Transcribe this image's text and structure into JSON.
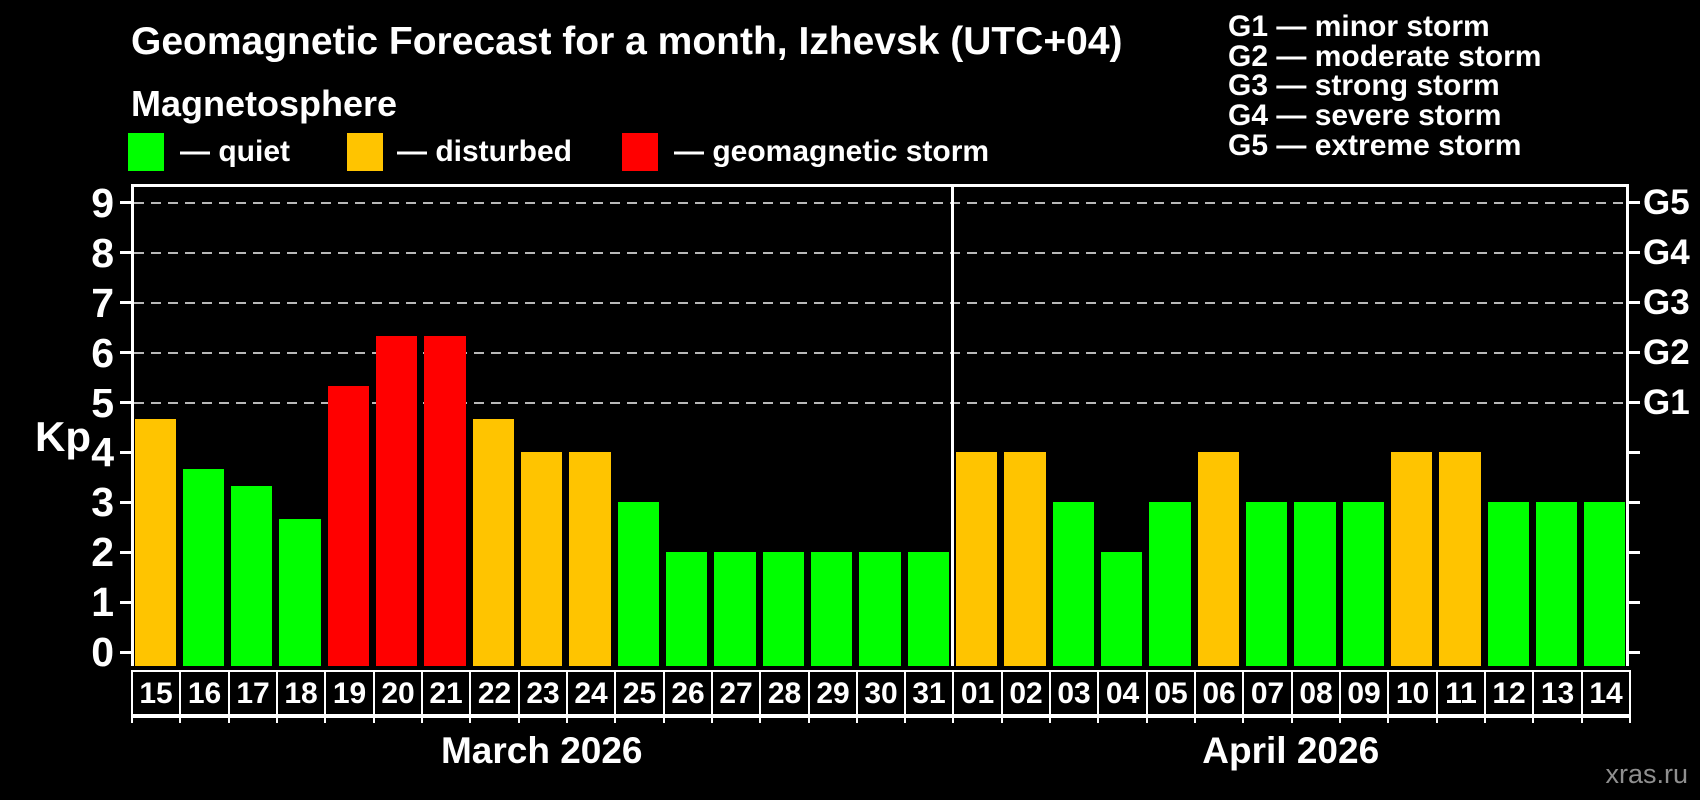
{
  "title": "Geomagnetic Forecast for a month, Izhevsk (UTC+04)",
  "subtitle": "Magnetosphere",
  "legend": [
    {
      "label": "— quiet",
      "color": "#00ff00"
    },
    {
      "label": "— disturbed",
      "color": "#ffc400"
    },
    {
      "label": "— geomagnetic storm",
      "color": "#ff0000"
    }
  ],
  "storm_scale": [
    "G1 — minor storm",
    "G2 — moderate storm",
    "G3 — strong storm",
    "G4 — severe storm",
    "G5 — extreme storm"
  ],
  "watermark": "xras.ru",
  "chart_data": {
    "type": "bar",
    "ylabel": "Kp",
    "ylim": [
      0,
      9.4
    ],
    "y_ticks": [
      0,
      1,
      2,
      3,
      4,
      5,
      6,
      7,
      8,
      9
    ],
    "gridlines_at": [
      5,
      6,
      7,
      8,
      9
    ],
    "grid_color": "#b8b8b8",
    "right_axis": [
      {
        "label": "G5",
        "kp": 9
      },
      {
        "label": "G4",
        "kp": 8
      },
      {
        "label": "G3",
        "kp": 7
      },
      {
        "label": "G2",
        "kp": 6
      },
      {
        "label": "G1",
        "kp": 5
      }
    ],
    "colors": {
      "quiet": "#00ff00",
      "disturbed": "#ffc400",
      "storm": "#ff0000"
    },
    "months": [
      {
        "label": "March 2026",
        "days": [
          {
            "day": "15",
            "kp": 4.67,
            "level": "disturbed"
          },
          {
            "day": "16",
            "kp": 3.67,
            "level": "quiet"
          },
          {
            "day": "17",
            "kp": 3.33,
            "level": "quiet"
          },
          {
            "day": "18",
            "kp": 2.67,
            "level": "quiet"
          },
          {
            "day": "19",
            "kp": 5.33,
            "level": "storm"
          },
          {
            "day": "20",
            "kp": 6.33,
            "level": "storm"
          },
          {
            "day": "21",
            "kp": 6.33,
            "level": "storm"
          },
          {
            "day": "22",
            "kp": 4.67,
            "level": "disturbed"
          },
          {
            "day": "23",
            "kp": 4,
            "level": "disturbed"
          },
          {
            "day": "24",
            "kp": 4,
            "level": "disturbed"
          },
          {
            "day": "25",
            "kp": 3,
            "level": "quiet"
          },
          {
            "day": "26",
            "kp": 2,
            "level": "quiet"
          },
          {
            "day": "27",
            "kp": 2,
            "level": "quiet"
          },
          {
            "day": "28",
            "kp": 2,
            "level": "quiet"
          },
          {
            "day": "29",
            "kp": 2,
            "level": "quiet"
          },
          {
            "day": "30",
            "kp": 2,
            "level": "quiet"
          },
          {
            "day": "31",
            "kp": 2,
            "level": "quiet"
          }
        ]
      },
      {
        "label": "April 2026",
        "days": [
          {
            "day": "01",
            "kp": 4,
            "level": "disturbed"
          },
          {
            "day": "02",
            "kp": 4,
            "level": "disturbed"
          },
          {
            "day": "03",
            "kp": 3,
            "level": "quiet"
          },
          {
            "day": "04",
            "kp": 2,
            "level": "quiet"
          },
          {
            "day": "05",
            "kp": 3,
            "level": "quiet"
          },
          {
            "day": "06",
            "kp": 4,
            "level": "disturbed"
          },
          {
            "day": "07",
            "kp": 3,
            "level": "quiet"
          },
          {
            "day": "08",
            "kp": 3,
            "level": "quiet"
          },
          {
            "day": "09",
            "kp": 3,
            "level": "quiet"
          },
          {
            "day": "10",
            "kp": 4,
            "level": "disturbed"
          },
          {
            "day": "11",
            "kp": 4,
            "level": "disturbed"
          },
          {
            "day": "12",
            "kp": 3,
            "level": "quiet"
          },
          {
            "day": "13",
            "kp": 3,
            "level": "quiet"
          },
          {
            "day": "14",
            "kp": 3,
            "level": "quiet"
          }
        ]
      }
    ]
  }
}
